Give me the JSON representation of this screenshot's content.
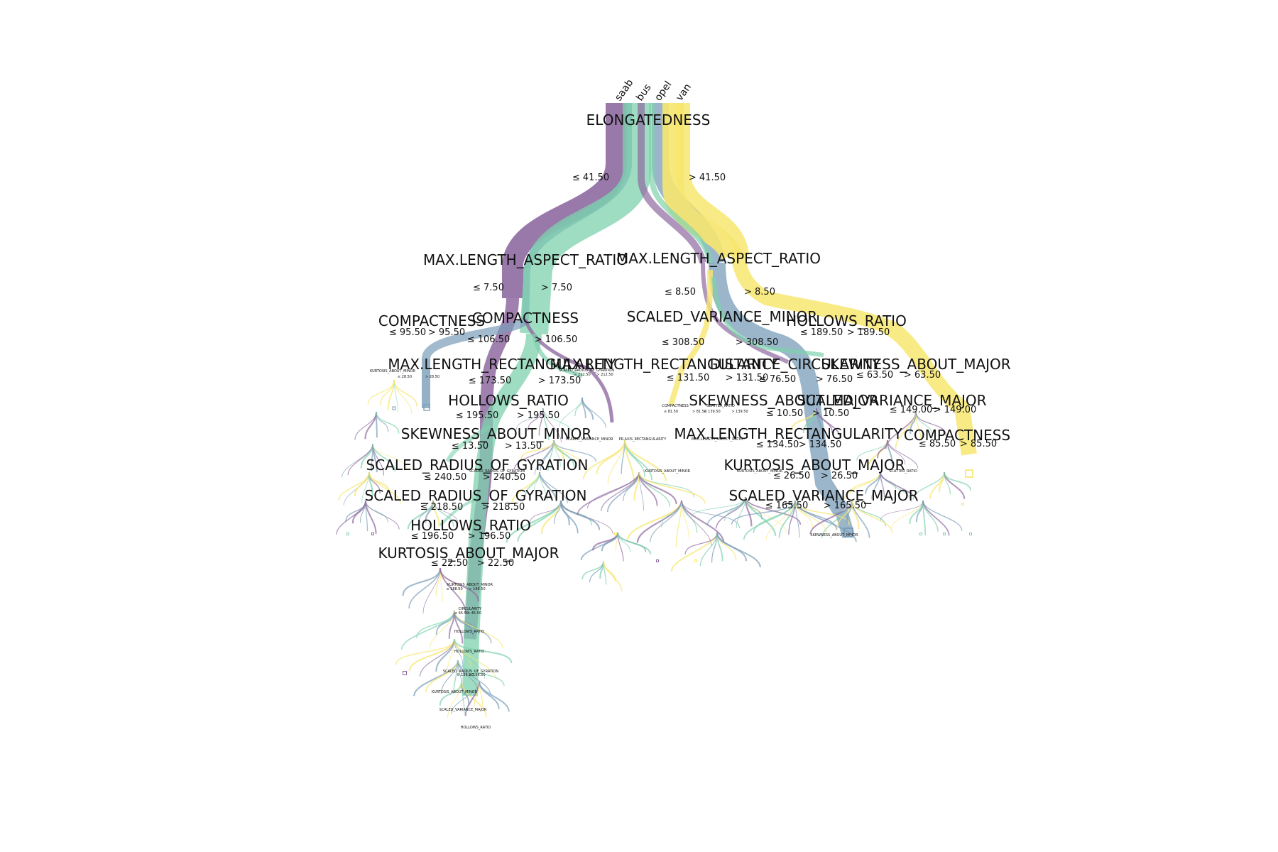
{
  "classes": [
    {
      "name": "saab",
      "color": "#8e6aa0"
    },
    {
      "name": "bus",
      "color": "#7a9db8"
    },
    {
      "name": "opel",
      "color": "#7fd1ae"
    },
    {
      "name": "van",
      "color": "#f7e66e"
    }
  ],
  "nodes": [
    {
      "id": "root",
      "label": "ELONGATEDNESS",
      "left": "≤ 41.50",
      "right": "> 41.50"
    },
    {
      "id": "n_l",
      "label": "MAX.LENGTH_ASPECT_RATIO",
      "left": "≤ 7.50",
      "right": "> 7.50"
    },
    {
      "id": "n_r",
      "label": "MAX.LENGTH_ASPECT_RATIO",
      "left": "≤ 8.50",
      "right": "> 8.50"
    },
    {
      "id": "n_ll",
      "label": "COMPACTNESS",
      "left": "≤ 95.50",
      "right": "> 95.50"
    },
    {
      "id": "n_lr",
      "label": "COMPACTNESS",
      "left": "≤ 106.50",
      "right": "> 106.50"
    },
    {
      "id": "n_rl",
      "label": "SCALED_VARIANCE_MINOR",
      "left": "≤ 308.50",
      "right": "> 308.50"
    },
    {
      "id": "n_rr",
      "label": "HOLLOWS_RATIO",
      "left": "≤ 189.50",
      "right": "> 189.50"
    },
    {
      "id": "n_lll",
      "label": "KURTOSIS_ABOUT_MINOR",
      "left": "≤ 28.50",
      "right": "> 28.50"
    },
    {
      "id": "n_lrl",
      "label": "MAX.LENGTH_RECTANGULARITY",
      "left": "≤ 173.50",
      "right": "> 173.50"
    },
    {
      "id": "n_lrr",
      "label": "SCALED_RADIUS_OF_GYRATION",
      "left": "≤ 212.50",
      "right": "> 212.50"
    },
    {
      "id": "n_rll",
      "label": "MAX.LENGTH_RECTANGULARITY",
      "left": "≤ 131.50",
      "right": "> 131.50"
    },
    {
      "id": "n_rlr",
      "label": "DISTANCE_CIRCULARITY",
      "left": "≤ 76.50",
      "right": "> 76.50"
    },
    {
      "id": "n_rrl",
      "label": "SKEWNESS_ABOUT_MAJOR",
      "left": "≤ 63.50",
      "right": "> 63.50"
    },
    {
      "id": "n_lrll",
      "label": "HOLLOWS_RATIO",
      "left": "≤ 195.50",
      "right": "> 195.50"
    },
    {
      "id": "n_rlll",
      "label": "COMPACTNESS",
      "left": "≤ 81.50",
      "right": "> 81.50"
    },
    {
      "id": "n_rllr",
      "label": "SCATTER_RATIO",
      "left": "≤ 139.50",
      "right": "> 139.50"
    },
    {
      "id": "n_rlrr",
      "label": "SKEWNESS_ABOUT_MAJOR",
      "left": "≤ 10.50",
      "right": "> 10.50"
    },
    {
      "id": "n_rrlr",
      "label": "SCALED_VARIANCE_MAJOR",
      "left": "≤ 149.00",
      "right": "> 149.00"
    },
    {
      "id": "n_a",
      "label": "SKEWNESS_ABOUT_MINOR",
      "left": "≤ 13.50",
      "right": "> 13.50"
    },
    {
      "id": "n_b",
      "label": "MAX.LENGTH_RECTANGULARITY",
      "left": "≤ 134.50",
      "right": "> 134.50"
    },
    {
      "id": "n_c",
      "label": "COMPACTNESS",
      "left": "≤ 85.50",
      "right": "> 85.50"
    },
    {
      "id": "n_d",
      "label": "SCALED_RADIUS_OF_GYRATION",
      "left": "≤ 240.50",
      "right": "> 240.50"
    },
    {
      "id": "n_e",
      "label": "KURTOSIS_ABOUT_MAJOR",
      "left": "≤ 26.50",
      "right": "> 26.50"
    },
    {
      "id": "n_f",
      "label": "SCALED_RADIUS_OF_GYRATION",
      "left": "≤ 218.50",
      "right": "> 218.50"
    },
    {
      "id": "n_g",
      "label": "SCALED_VARIANCE_MAJOR",
      "left": "≤ 165.50",
      "right": "> 165.50"
    },
    {
      "id": "n_h",
      "label": "HOLLOWS_RATIO",
      "left": "≤ 196.50",
      "right": "> 196.50"
    },
    {
      "id": "n_i",
      "label": "KURTOSIS_ABOUT_MAJOR",
      "left": "≤ 22.50",
      "right": "> 22.50"
    },
    {
      "id": "n_j",
      "label": "KURTOSIS_ABOUT_MINOR",
      "left": "≤ 188.50",
      "right": "> 188.50"
    },
    {
      "id": "n_k",
      "label": "CIRCULARITY",
      "left": "≤ 45.50",
      "right": "> 45.50"
    },
    {
      "id": "n_l2",
      "label": "HOLLOWS_RATIO",
      "left": "",
      "right": ""
    },
    {
      "id": "n_m",
      "label": "HOLLOWS_RATIO",
      "left": "",
      "right": ""
    },
    {
      "id": "n_n",
      "label": "SCALED_RADIUS_OF_GYRATION",
      "left": "≤ 156.50",
      "right": "> 156.50"
    },
    {
      "id": "n_o",
      "label": "KURTOSIS_ABOUT_MINOR",
      "left": "",
      "right": ""
    },
    {
      "id": "n_p",
      "label": "SCALED_VARIANCE_MAJOR",
      "left": "",
      "right": ""
    },
    {
      "id": "n_q",
      "label": "HOLLOWS_RATIO",
      "left": "",
      "right": ""
    },
    {
      "id": "n_r2",
      "label": "KURTOSIS_ABOUT_MINOR",
      "left": "",
      "right": ""
    },
    {
      "id": "n_s",
      "label": "PR.AXIS_RECTANGULARITY",
      "left": "",
      "right": ""
    },
    {
      "id": "n_t",
      "label": "MAX.LENGTH_ASPECT_RATIO",
      "left": "",
      "right": ""
    },
    {
      "id": "n_u",
      "label": "SCATTER_RATIO",
      "left": "",
      "right": ""
    },
    {
      "id": "n_v",
      "label": "SCALED_RADIUS_OF_GYRATION",
      "left": "",
      "right": ""
    },
    {
      "id": "n_w",
      "label": "KURTOSIS_ABOUT_MINOR",
      "left": "",
      "right": ""
    },
    {
      "id": "n_x",
      "label": "SCALED_VARIANCE_MINOR",
      "left": "",
      "right": ""
    },
    {
      "id": "n_y",
      "label": "SKEWNESS_ABOUT_MINOR",
      "left": "",
      "right": ""
    }
  ]
}
